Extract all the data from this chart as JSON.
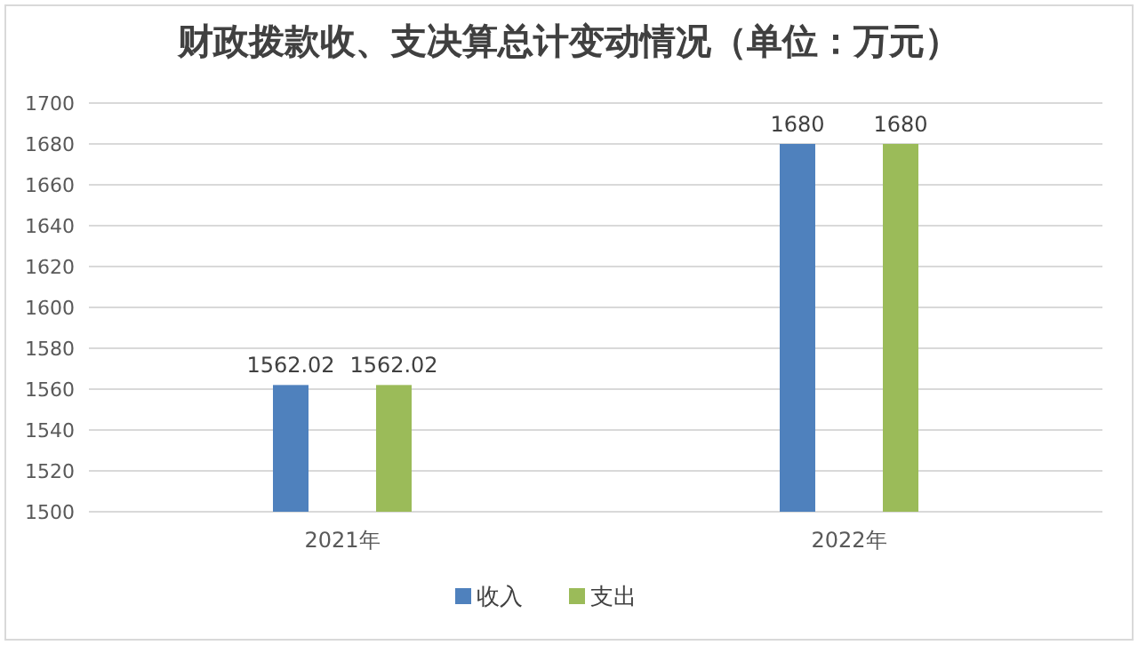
{
  "chart_data": {
    "type": "bar",
    "title": "财政拨款收、支决算总计变动情况（单位：万元）",
    "categories": [
      "2021年",
      "2022年"
    ],
    "series": [
      {
        "name": "收入",
        "color": "#4f81bd",
        "values": [
          1562.02,
          1680
        ]
      },
      {
        "name": "支出",
        "color": "#9bbb59",
        "values": [
          1562.02,
          1680
        ]
      }
    ],
    "ylim": [
      1500,
      1700
    ],
    "yticks": [
      1500,
      1520,
      1540,
      1560,
      1580,
      1600,
      1620,
      1640,
      1660,
      1680,
      1700
    ],
    "grid": "y",
    "legend": "bottom",
    "data_labels": true
  }
}
